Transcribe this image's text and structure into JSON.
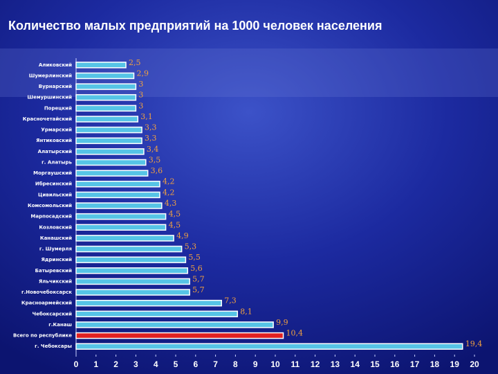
{
  "chart_data": {
    "type": "bar",
    "orientation": "horizontal",
    "title": "Количество малых предприятий на 1000 человек населения",
    "categories": [
      "Аликовский",
      "Шумерлинский",
      "Вурнарский",
      "Шемуршинский",
      "Порецкий",
      "Красночетайский",
      "Урмарский",
      "Янтиковский",
      "Алатырский",
      "г. Алатырь",
      "Моргаушский",
      "Ибресинский",
      "Цивильский",
      "Комсомольский",
      "Марпосадский",
      "Козловский",
      "Канашский",
      "г. Шумерля",
      "Ядринский",
      "Батыревский",
      "Яльчикский",
      "г.Новочебоксарск",
      "Красноармейский",
      "Чебоксарский",
      "г.Канаш",
      "Всего по республике",
      "г. Чебоксары"
    ],
    "values": [
      2.5,
      2.9,
      3,
      3,
      3,
      3.1,
      3.3,
      3.3,
      3.4,
      3.5,
      3.6,
      4.2,
      4.2,
      4.3,
      4.5,
      4.5,
      4.9,
      5.3,
      5.5,
      5.6,
      5.7,
      5.7,
      7.3,
      8.1,
      9.9,
      10.4,
      19.4
    ],
    "value_labels": [
      "2,5",
      "2,9",
      "3",
      "3",
      "3",
      "3,1",
      "3,3",
      "3,3",
      "3,4",
      "3,5",
      "3,6",
      "4,2",
      "4,2",
      "4,3",
      "4,5",
      "4,5",
      "4,9",
      "5,3",
      "5,5",
      "5,6",
      "5,7",
      "5,7",
      "7,3",
      "8,1",
      "9,9",
      "10,4",
      "19,4"
    ],
    "colors": [
      "#56c4e6",
      "#56c4e6",
      "#56c4e6",
      "#56c4e6",
      "#56c4e6",
      "#56c4e6",
      "#56c4e6",
      "#56c4e6",
      "#56c4e6",
      "#56c4e6",
      "#56c4e6",
      "#56c4e6",
      "#56c4e6",
      "#56c4e6",
      "#56c4e6",
      "#56c4e6",
      "#56c4e6",
      "#56c4e6",
      "#56c4e6",
      "#56c4e6",
      "#56c4e6",
      "#56c4e6",
      "#56c4e6",
      "#56c4e6",
      "#56c4e6",
      "#e02020",
      "#56c4e6"
    ],
    "xlim": [
      0,
      20
    ],
    "xticks": [
      0,
      1,
      2,
      3,
      4,
      5,
      6,
      7,
      8,
      9,
      10,
      11,
      12,
      13,
      14,
      15,
      16,
      17,
      18,
      19,
      20
    ],
    "grid": false
  }
}
